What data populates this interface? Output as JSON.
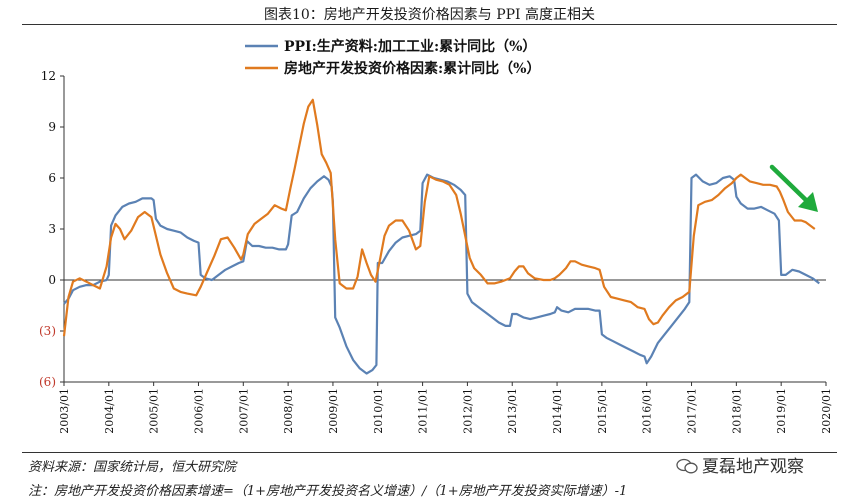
{
  "title": "图表10：房地产开发投资价格因素与 PPI 高度正相关",
  "source": "资料来源：国家统计局，恒大研究院",
  "note": "注：房地产开发投资价格因素增速=（1+房地产开发投资名义增速）/（1+房地产开发投资实际增速）-1",
  "watermark": "夏磊地产观察",
  "colors": {
    "ppi": "#5b82b4",
    "price": "#e07a1f",
    "arrow": "#1faa3c",
    "negative": "#c0392b"
  },
  "chart_data": {
    "type": "line",
    "xlabel": "",
    "ylabel": "",
    "ylim": [
      -6,
      12
    ],
    "yticks": [
      12,
      9,
      6,
      3,
      0,
      -3,
      -6
    ],
    "ytick_labels": [
      "12",
      "9",
      "6",
      "3",
      "0",
      "(3)",
      "(6)"
    ],
    "xlim": [
      2003.0,
      2020.0
    ],
    "xticks": [
      "2003/01",
      "2004/01",
      "2005/01",
      "2006/01",
      "2007/01",
      "2008/01",
      "2009/01",
      "2010/01",
      "2011/01",
      "2012/01",
      "2013/01",
      "2014/01",
      "2015/01",
      "2016/01",
      "2017/01",
      "2018/01",
      "2019/01",
      "2020/01"
    ],
    "legend_position": "top-center",
    "series": [
      {
        "name": "PPI:生产资料:加工工业:累计同比（%）",
        "color": "#5b82b4",
        "points": [
          [
            2003.0,
            -1.4
          ],
          [
            2003.1,
            -1.1
          ],
          [
            2003.2,
            -0.6
          ],
          [
            2003.35,
            -0.4
          ],
          [
            2003.5,
            -0.3
          ],
          [
            2003.65,
            -0.3
          ],
          [
            2003.8,
            -0.1
          ],
          [
            2003.95,
            0.0
          ],
          [
            2004.0,
            0.3
          ],
          [
            2004.05,
            3.2
          ],
          [
            2004.15,
            3.8
          ],
          [
            2004.3,
            4.3
          ],
          [
            2004.45,
            4.5
          ],
          [
            2004.6,
            4.6
          ],
          [
            2004.75,
            4.8
          ],
          [
            2004.9,
            4.8
          ],
          [
            2004.95,
            4.8
          ],
          [
            2005.0,
            4.7
          ],
          [
            2005.05,
            3.6
          ],
          [
            2005.15,
            3.2
          ],
          [
            2005.3,
            3.0
          ],
          [
            2005.45,
            2.9
          ],
          [
            2005.6,
            2.8
          ],
          [
            2005.75,
            2.5
          ],
          [
            2005.9,
            2.3
          ],
          [
            2006.0,
            2.2
          ],
          [
            2006.05,
            0.3
          ],
          [
            2006.15,
            0.1
          ],
          [
            2006.3,
            0.0
          ],
          [
            2006.45,
            0.3
          ],
          [
            2006.6,
            0.6
          ],
          [
            2006.75,
            0.8
          ],
          [
            2006.9,
            1.0
          ],
          [
            2007.0,
            1.1
          ],
          [
            2007.08,
            2.3
          ],
          [
            2007.2,
            2.0
          ],
          [
            2007.35,
            2.0
          ],
          [
            2007.5,
            1.9
          ],
          [
            2007.65,
            1.9
          ],
          [
            2007.8,
            1.8
          ],
          [
            2007.95,
            1.8
          ],
          [
            2008.0,
            2.1
          ],
          [
            2008.08,
            3.8
          ],
          [
            2008.2,
            4.0
          ],
          [
            2008.35,
            4.8
          ],
          [
            2008.5,
            5.4
          ],
          [
            2008.65,
            5.8
          ],
          [
            2008.8,
            6.1
          ],
          [
            2008.9,
            5.9
          ],
          [
            2008.97,
            5.5
          ],
          [
            2009.0,
            4.6
          ],
          [
            2009.05,
            -2.2
          ],
          [
            2009.15,
            -2.8
          ],
          [
            2009.3,
            -3.9
          ],
          [
            2009.45,
            -4.7
          ],
          [
            2009.6,
            -5.2
          ],
          [
            2009.75,
            -5.5
          ],
          [
            2009.88,
            -5.3
          ],
          [
            2009.97,
            -5.0
          ],
          [
            2010.0,
            1.0
          ],
          [
            2010.1,
            1.0
          ],
          [
            2010.25,
            1.7
          ],
          [
            2010.4,
            2.2
          ],
          [
            2010.55,
            2.5
          ],
          [
            2010.7,
            2.6
          ],
          [
            2010.85,
            2.7
          ],
          [
            2010.95,
            2.9
          ],
          [
            2011.0,
            5.7
          ],
          [
            2011.1,
            6.2
          ],
          [
            2011.25,
            6.0
          ],
          [
            2011.4,
            5.9
          ],
          [
            2011.55,
            5.8
          ],
          [
            2011.7,
            5.6
          ],
          [
            2011.85,
            5.3
          ],
          [
            2011.95,
            5.0
          ],
          [
            2012.0,
            -0.8
          ],
          [
            2012.1,
            -1.3
          ],
          [
            2012.25,
            -1.6
          ],
          [
            2012.4,
            -1.9
          ],
          [
            2012.55,
            -2.2
          ],
          [
            2012.7,
            -2.5
          ],
          [
            2012.85,
            -2.7
          ],
          [
            2012.95,
            -2.7
          ],
          [
            2013.0,
            -2.0
          ],
          [
            2013.1,
            -2.0
          ],
          [
            2013.25,
            -2.2
          ],
          [
            2013.4,
            -2.3
          ],
          [
            2013.55,
            -2.2
          ],
          [
            2013.7,
            -2.1
          ],
          [
            2013.85,
            -2.0
          ],
          [
            2013.95,
            -1.9
          ],
          [
            2014.0,
            -1.6
          ],
          [
            2014.1,
            -1.8
          ],
          [
            2014.25,
            -1.9
          ],
          [
            2014.4,
            -1.7
          ],
          [
            2014.55,
            -1.7
          ],
          [
            2014.7,
            -1.7
          ],
          [
            2014.85,
            -1.8
          ],
          [
            2014.95,
            -1.8
          ],
          [
            2015.0,
            -3.2
          ],
          [
            2015.1,
            -3.4
          ],
          [
            2015.25,
            -3.6
          ],
          [
            2015.4,
            -3.8
          ],
          [
            2015.55,
            -4.0
          ],
          [
            2015.7,
            -4.2
          ],
          [
            2015.85,
            -4.4
          ],
          [
            2015.95,
            -4.5
          ],
          [
            2016.0,
            -4.9
          ],
          [
            2016.1,
            -4.5
          ],
          [
            2016.25,
            -3.7
          ],
          [
            2016.4,
            -3.2
          ],
          [
            2016.55,
            -2.7
          ],
          [
            2016.7,
            -2.2
          ],
          [
            2016.85,
            -1.7
          ],
          [
            2016.95,
            -1.3
          ],
          [
            2017.0,
            6.0
          ],
          [
            2017.1,
            6.2
          ],
          [
            2017.25,
            5.8
          ],
          [
            2017.4,
            5.6
          ],
          [
            2017.55,
            5.7
          ],
          [
            2017.7,
            6.0
          ],
          [
            2017.85,
            6.1
          ],
          [
            2017.95,
            5.9
          ],
          [
            2018.0,
            4.9
          ],
          [
            2018.1,
            4.5
          ],
          [
            2018.25,
            4.2
          ],
          [
            2018.4,
            4.2
          ],
          [
            2018.55,
            4.3
          ],
          [
            2018.7,
            4.1
          ],
          [
            2018.85,
            3.9
          ],
          [
            2018.95,
            3.5
          ],
          [
            2019.0,
            0.3
          ],
          [
            2019.1,
            0.3
          ],
          [
            2019.25,
            0.6
          ],
          [
            2019.4,
            0.5
          ],
          [
            2019.55,
            0.3
          ],
          [
            2019.7,
            0.1
          ],
          [
            2019.85,
            -0.2
          ]
        ]
      },
      {
        "name": "房地产开发投资价格因素:累计同比（%）",
        "color": "#e07a1f",
        "points": [
          [
            2003.0,
            -3.3
          ],
          [
            2003.1,
            -1.0
          ],
          [
            2003.2,
            -0.1
          ],
          [
            2003.35,
            0.1
          ],
          [
            2003.5,
            -0.1
          ],
          [
            2003.65,
            -0.3
          ],
          [
            2003.8,
            -0.5
          ],
          [
            2003.95,
            0.8
          ],
          [
            2004.05,
            2.5
          ],
          [
            2004.15,
            3.3
          ],
          [
            2004.25,
            3.0
          ],
          [
            2004.35,
            2.4
          ],
          [
            2004.5,
            2.9
          ],
          [
            2004.65,
            3.7
          ],
          [
            2004.8,
            4.0
          ],
          [
            2004.95,
            3.7
          ],
          [
            2005.05,
            2.6
          ],
          [
            2005.15,
            1.5
          ],
          [
            2005.3,
            0.4
          ],
          [
            2005.45,
            -0.5
          ],
          [
            2005.6,
            -0.7
          ],
          [
            2005.75,
            -0.8
          ],
          [
            2005.95,
            -0.9
          ],
          [
            2006.05,
            -0.4
          ],
          [
            2006.2,
            0.5
          ],
          [
            2006.35,
            1.4
          ],
          [
            2006.5,
            2.4
          ],
          [
            2006.65,
            2.5
          ],
          [
            2006.8,
            1.9
          ],
          [
            2006.95,
            1.2
          ],
          [
            2007.0,
            1.5
          ],
          [
            2007.1,
            2.7
          ],
          [
            2007.25,
            3.3
          ],
          [
            2007.4,
            3.6
          ],
          [
            2007.55,
            3.9
          ],
          [
            2007.7,
            4.4
          ],
          [
            2007.85,
            4.2
          ],
          [
            2007.95,
            4.1
          ],
          [
            2008.05,
            5.4
          ],
          [
            2008.15,
            6.6
          ],
          [
            2008.25,
            7.9
          ],
          [
            2008.35,
            9.2
          ],
          [
            2008.45,
            10.2
          ],
          [
            2008.55,
            10.6
          ],
          [
            2008.65,
            9.1
          ],
          [
            2008.75,
            7.4
          ],
          [
            2008.85,
            6.9
          ],
          [
            2008.95,
            6.3
          ],
          [
            2009.05,
            2.4
          ],
          [
            2009.15,
            -0.2
          ],
          [
            2009.3,
            -0.5
          ],
          [
            2009.45,
            -0.5
          ],
          [
            2009.55,
            0.2
          ],
          [
            2009.65,
            1.8
          ],
          [
            2009.75,
            1.0
          ],
          [
            2009.85,
            0.3
          ],
          [
            2009.95,
            -0.1
          ],
          [
            2010.05,
            1.2
          ],
          [
            2010.15,
            2.6
          ],
          [
            2010.25,
            3.2
          ],
          [
            2010.4,
            3.5
          ],
          [
            2010.55,
            3.5
          ],
          [
            2010.7,
            2.9
          ],
          [
            2010.85,
            1.8
          ],
          [
            2010.95,
            2.0
          ],
          [
            2011.05,
            4.6
          ],
          [
            2011.15,
            6.1
          ],
          [
            2011.3,
            5.9
          ],
          [
            2011.45,
            5.8
          ],
          [
            2011.6,
            5.6
          ],
          [
            2011.75,
            5.0
          ],
          [
            2011.85,
            3.9
          ],
          [
            2011.95,
            2.6
          ],
          [
            2012.05,
            1.3
          ],
          [
            2012.15,
            0.7
          ],
          [
            2012.3,
            0.3
          ],
          [
            2012.45,
            -0.2
          ],
          [
            2012.6,
            -0.2
          ],
          [
            2012.75,
            -0.1
          ],
          [
            2012.85,
            0.0
          ],
          [
            2012.95,
            0.1
          ],
          [
            2013.05,
            0.5
          ],
          [
            2013.15,
            0.8
          ],
          [
            2013.25,
            0.8
          ],
          [
            2013.35,
            0.4
          ],
          [
            2013.5,
            0.1
          ],
          [
            2013.7,
            0.0
          ],
          [
            2013.85,
            0.0
          ],
          [
            2013.95,
            0.1
          ],
          [
            2014.05,
            0.3
          ],
          [
            2014.2,
            0.7
          ],
          [
            2014.3,
            1.1
          ],
          [
            2014.4,
            1.1
          ],
          [
            2014.55,
            0.9
          ],
          [
            2014.7,
            0.8
          ],
          [
            2014.85,
            0.7
          ],
          [
            2014.95,
            0.6
          ],
          [
            2015.05,
            -0.4
          ],
          [
            2015.2,
            -1.0
          ],
          [
            2015.35,
            -1.1
          ],
          [
            2015.5,
            -1.2
          ],
          [
            2015.65,
            -1.3
          ],
          [
            2015.8,
            -1.6
          ],
          [
            2015.95,
            -1.7
          ],
          [
            2016.05,
            -2.3
          ],
          [
            2016.15,
            -2.6
          ],
          [
            2016.25,
            -2.5
          ],
          [
            2016.35,
            -2.1
          ],
          [
            2016.5,
            -1.6
          ],
          [
            2016.65,
            -1.2
          ],
          [
            2016.8,
            -1.0
          ],
          [
            2016.95,
            -0.7
          ],
          [
            2017.05,
            2.6
          ],
          [
            2017.15,
            4.4
          ],
          [
            2017.3,
            4.6
          ],
          [
            2017.45,
            4.7
          ],
          [
            2017.6,
            5.0
          ],
          [
            2017.75,
            5.4
          ],
          [
            2017.9,
            5.7
          ],
          [
            2018.0,
            6.0
          ],
          [
            2018.1,
            6.2
          ],
          [
            2018.2,
            6.0
          ],
          [
            2018.3,
            5.8
          ],
          [
            2018.45,
            5.7
          ],
          [
            2018.6,
            5.6
          ],
          [
            2018.75,
            5.6
          ],
          [
            2018.9,
            5.5
          ],
          [
            2018.97,
            5.2
          ],
          [
            2019.05,
            4.7
          ],
          [
            2019.15,
            4.0
          ],
          [
            2019.3,
            3.5
          ],
          [
            2019.45,
            3.5
          ],
          [
            2019.55,
            3.4
          ],
          [
            2019.65,
            3.2
          ],
          [
            2019.75,
            3.0
          ]
        ]
      }
    ]
  }
}
